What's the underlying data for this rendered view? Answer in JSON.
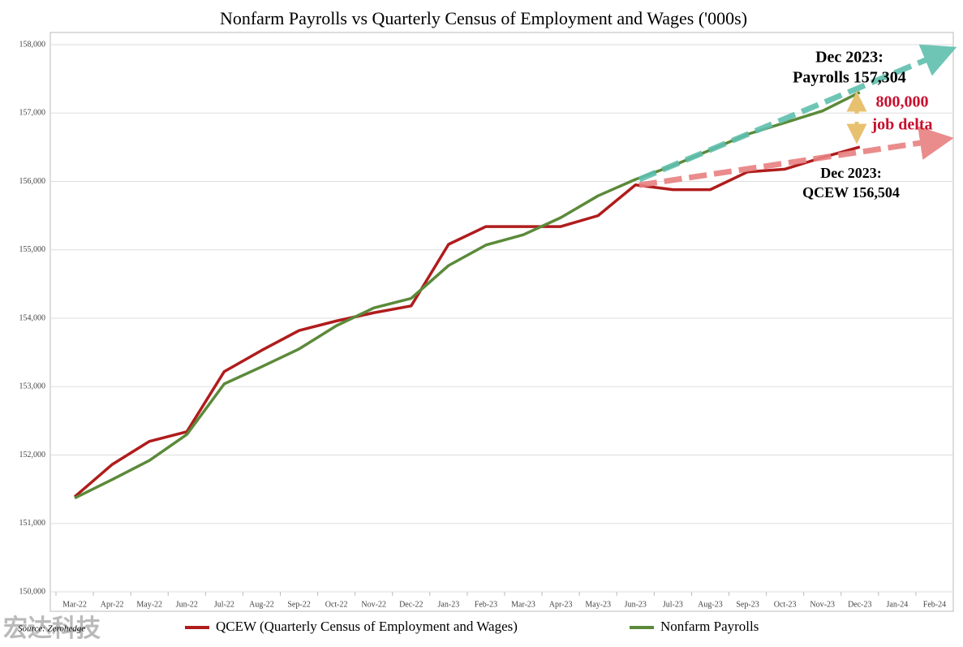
{
  "chart_data": {
    "type": "line",
    "title": "Nonfarm Payrolls vs Quarterly Census of Employment and Wages ('000s)",
    "categories": [
      "Mar-22",
      "Apr-22",
      "May-22",
      "Jun-22",
      "Jul-22",
      "Aug-22",
      "Sep-22",
      "Oct-22",
      "Nov-22",
      "Dec-22",
      "Jan-23",
      "Feb-23",
      "Mar-23",
      "Apr-23",
      "May-23",
      "Jun-23",
      "Jul-23",
      "Aug-23",
      "Sep-23",
      "Oct-23",
      "Nov-23",
      "Dec-23",
      "Jan-24",
      "Feb-24"
    ],
    "series": [
      {
        "name": "QCEW (Quarterly Census of Employment and Wages)",
        "color": "#b01c1c",
        "values": [
          151390,
          151860,
          152200,
          152340,
          153220,
          153530,
          153820,
          153960,
          154080,
          154180,
          155080,
          155340,
          155340,
          155340,
          155500,
          155950,
          155880,
          155880,
          156140,
          156180,
          156350,
          156504,
          null,
          null
        ]
      },
      {
        "name": "Nonfarm Payrolls",
        "color": "#5b8a3a",
        "values": [
          151370,
          151640,
          151920,
          152300,
          153040,
          153290,
          153550,
          153890,
          154150,
          154290,
          154770,
          155070,
          155220,
          155470,
          155790,
          156030,
          156230,
          156460,
          156690,
          156860,
          157030,
          157304,
          null,
          null
        ]
      }
    ],
    "ylim": [
      150000,
      158000
    ],
    "yticks": [
      {
        "value": 150000,
        "label": "150,000"
      },
      {
        "value": 151000,
        "label": "151,000"
      },
      {
        "value": 152000,
        "label": "152,000"
      },
      {
        "value": 153000,
        "label": "153,000"
      },
      {
        "value": 154000,
        "label": "154,000"
      },
      {
        "value": 155000,
        "label": "155,000"
      },
      {
        "value": 156000,
        "label": "156,000"
      },
      {
        "value": 157000,
        "label": "157,000"
      },
      {
        "value": 158000,
        "label": "158,000"
      }
    ],
    "grid": true,
    "legend": "bottom",
    "annotations": [
      "Dec 2023:",
      "Payrolls 157,304",
      "800,000",
      "job delta",
      "Dec 2023:",
      "QCEW 156,504"
    ],
    "source": "Source: Zerohedge",
    "watermark": "宏达科技"
  }
}
